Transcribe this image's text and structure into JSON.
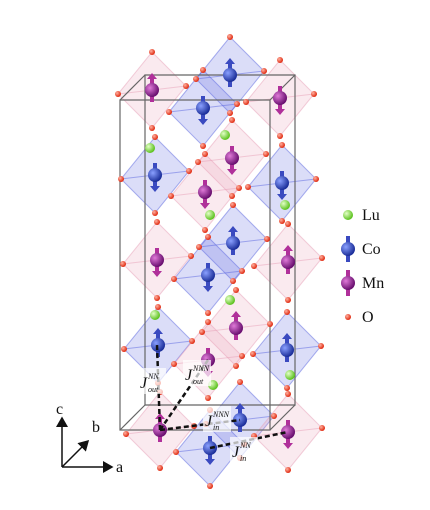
{
  "legend": [
    {
      "label": "Lu"
    },
    {
      "label": "Co"
    },
    {
      "label": "Mn"
    },
    {
      "label": "O"
    }
  ],
  "axes": {
    "a": "a",
    "b": "b",
    "c": "c"
  },
  "couplings": [
    {
      "symbol": "J",
      "sup": "NN",
      "sub": "out"
    },
    {
      "symbol": "J",
      "sup": "NNN",
      "sub": "out"
    },
    {
      "symbol": "J",
      "sup": "NNN",
      "sub": "in"
    },
    {
      "symbol": "J",
      "sup": "NN",
      "sub": "in"
    }
  ]
}
